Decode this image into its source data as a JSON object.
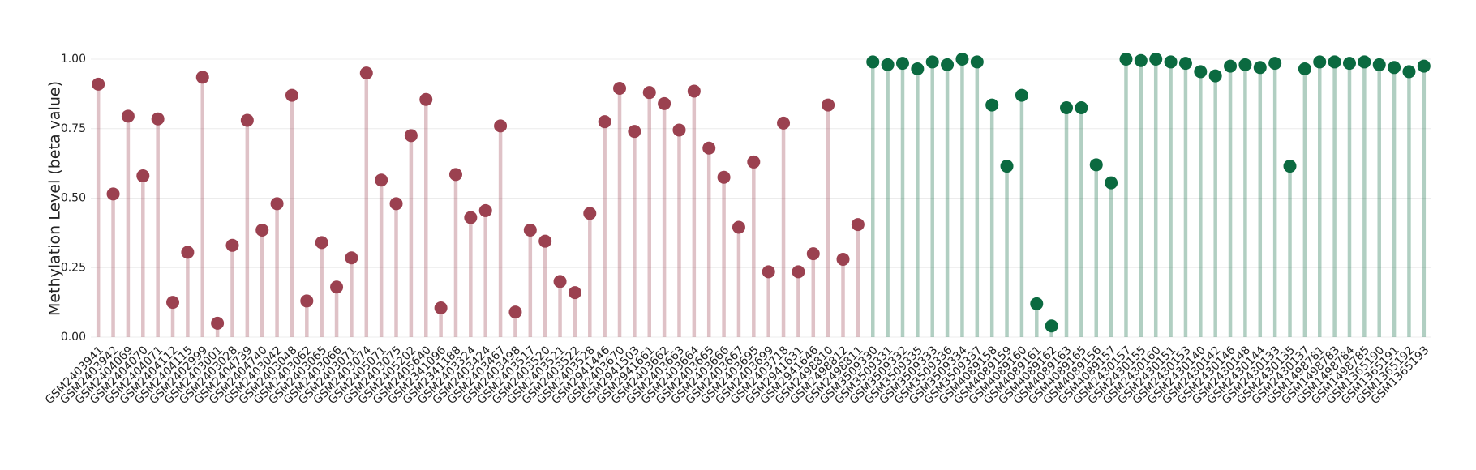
{
  "chart_data": {
    "type": "lollipop",
    "ylabel": "Methylation Level (beta value)",
    "categories": [
      "GSM2403941",
      "GSM2403942",
      "GSM2404069",
      "GSM2404070",
      "GSM2404071",
      "GSM2404112",
      "GSM2404115",
      "GSM2402999",
      "GSM2403001",
      "GSM2403028",
      "GSM2404739",
      "GSM2404740",
      "GSM2403042",
      "GSM2403048",
      "GSM2403062",
      "GSM2403065",
      "GSM2403066",
      "GSM2403071",
      "GSM2403074",
      "GSM2405071",
      "GSM2403075",
      "GSM2405202",
      "GSM2405640",
      "GSM2341096",
      "GSM2341188",
      "GSM2403324",
      "GSM2403424",
      "GSM2403467",
      "GSM2403498",
      "GSM2403517",
      "GSM2403520",
      "GSM2403521",
      "GSM2403522",
      "GSM2403528",
      "GSM2941446",
      "GSM2403670",
      "GSM2941503",
      "GSM2941661",
      "GSM2403662",
      "GSM2403663",
      "GSM2403664",
      "GSM2403665",
      "GSM2403666",
      "GSM2403667",
      "GSM2403695",
      "GSM2403699",
      "GSM2403718",
      "GSM2941631",
      "GSM2941646",
      "GSM2498810",
      "GSM2498812",
      "GSM2498811",
      "GSM3509330",
      "GSM3509331",
      "GSM3509332",
      "GSM3509335",
      "GSM3509333",
      "GSM3509336",
      "GSM3509334",
      "GSM3509337",
      "GSM4089158",
      "GSM4089159",
      "GSM4089160",
      "GSM4089161",
      "GSM4089162",
      "GSM4089163",
      "GSM4089165",
      "GSM4089156",
      "GSM4089157",
      "GSM2430157",
      "GSM2430155",
      "GSM2430160",
      "GSM2430151",
      "GSM2430153",
      "GSM2430140",
      "GSM2430142",
      "GSM2430146",
      "GSM2430148",
      "GSM2430144",
      "GSM2430133",
      "GSM2430135",
      "GSM2430137",
      "GSM1498781",
      "GSM1498783",
      "GSM1498784",
      "GSM1498785",
      "GSM1365190",
      "GSM1365191",
      "GSM1365192",
      "GSM1365193"
    ],
    "values": [
      0.91,
      0.515,
      0.795,
      0.58,
      0.785,
      0.125,
      0.305,
      0.935,
      0.05,
      0.33,
      0.78,
      0.385,
      0.48,
      0.87,
      0.13,
      0.34,
      0.18,
      0.285,
      0.95,
      0.565,
      0.48,
      0.725,
      0.855,
      0.105,
      0.585,
      0.43,
      0.455,
      0.76,
      0.09,
      0.385,
      0.345,
      0.2,
      0.16,
      0.445,
      0.775,
      0.895,
      0.74,
      0.88,
      0.84,
      0.745,
      0.885,
      0.68,
      0.575,
      0.395,
      0.63,
      0.235,
      0.77,
      0.235,
      0.3,
      0.835,
      0.28,
      0.405,
      0.99,
      0.98,
      0.985,
      0.965,
      0.99,
      0.98,
      1.0,
      0.99,
      0.835,
      0.615,
      0.87,
      0.12,
      0.04,
      0.825,
      0.825,
      0.62,
      0.555,
      1.0,
      0.995,
      1.0,
      0.99,
      0.985,
      0.955,
      0.94,
      0.975,
      0.98,
      0.97,
      0.985,
      0.615,
      0.965,
      0.99,
      0.99,
      0.985,
      0.99,
      0.98,
      0.97,
      0.955,
      0.975
    ],
    "colors": [
      "#9b4150",
      "#9b4150",
      "#9b4150",
      "#9b4150",
      "#9b4150",
      "#9b4150",
      "#9b4150",
      "#9b4150",
      "#9b4150",
      "#9b4150",
      "#9b4150",
      "#9b4150",
      "#9b4150",
      "#9b4150",
      "#9b4150",
      "#9b4150",
      "#9b4150",
      "#9b4150",
      "#9b4150",
      "#9b4150",
      "#9b4150",
      "#9b4150",
      "#9b4150",
      "#9b4150",
      "#9b4150",
      "#9b4150",
      "#9b4150",
      "#9b4150",
      "#9b4150",
      "#9b4150",
      "#9b4150",
      "#9b4150",
      "#9b4150",
      "#9b4150",
      "#9b4150",
      "#9b4150",
      "#9b4150",
      "#9b4150",
      "#9b4150",
      "#9b4150",
      "#9b4150",
      "#9b4150",
      "#9b4150",
      "#9b4150",
      "#9b4150",
      "#9b4150",
      "#9b4150",
      "#9b4150",
      "#9b4150",
      "#9b4150",
      "#9b4150",
      "#9b4150",
      "#0b6a40",
      "#0b6a40",
      "#0b6a40",
      "#0b6a40",
      "#0b6a40",
      "#0b6a40",
      "#0b6a40",
      "#0b6a40",
      "#0b6a40",
      "#0b6a40",
      "#0b6a40",
      "#0b6a40",
      "#0b6a40",
      "#0b6a40",
      "#0b6a40",
      "#0b6a40",
      "#0b6a40",
      "#0b6a40",
      "#0b6a40",
      "#0b6a40",
      "#0b6a40",
      "#0b6a40",
      "#0b6a40",
      "#0b6a40",
      "#0b6a40",
      "#0b6a40",
      "#0b6a40",
      "#0b6a40",
      "#0b6a40",
      "#0b6a40",
      "#0b6a40",
      "#0b6a40",
      "#0b6a40",
      "#0b6a40",
      "#0b6a40",
      "#0b6a40",
      "#0b6a40",
      "#0b6a40"
    ],
    "ylim": [
      0,
      1.0
    ],
    "yticks": [
      {
        "value": 0,
        "label": "0.00"
      },
      {
        "value": 0.25,
        "label": "0.25"
      },
      {
        "value": 0.5,
        "label": "0.50"
      },
      {
        "value": 0.75,
        "label": "0.75"
      },
      {
        "value": 1.0,
        "label": "1.00"
      }
    ],
    "grid": true
  }
}
